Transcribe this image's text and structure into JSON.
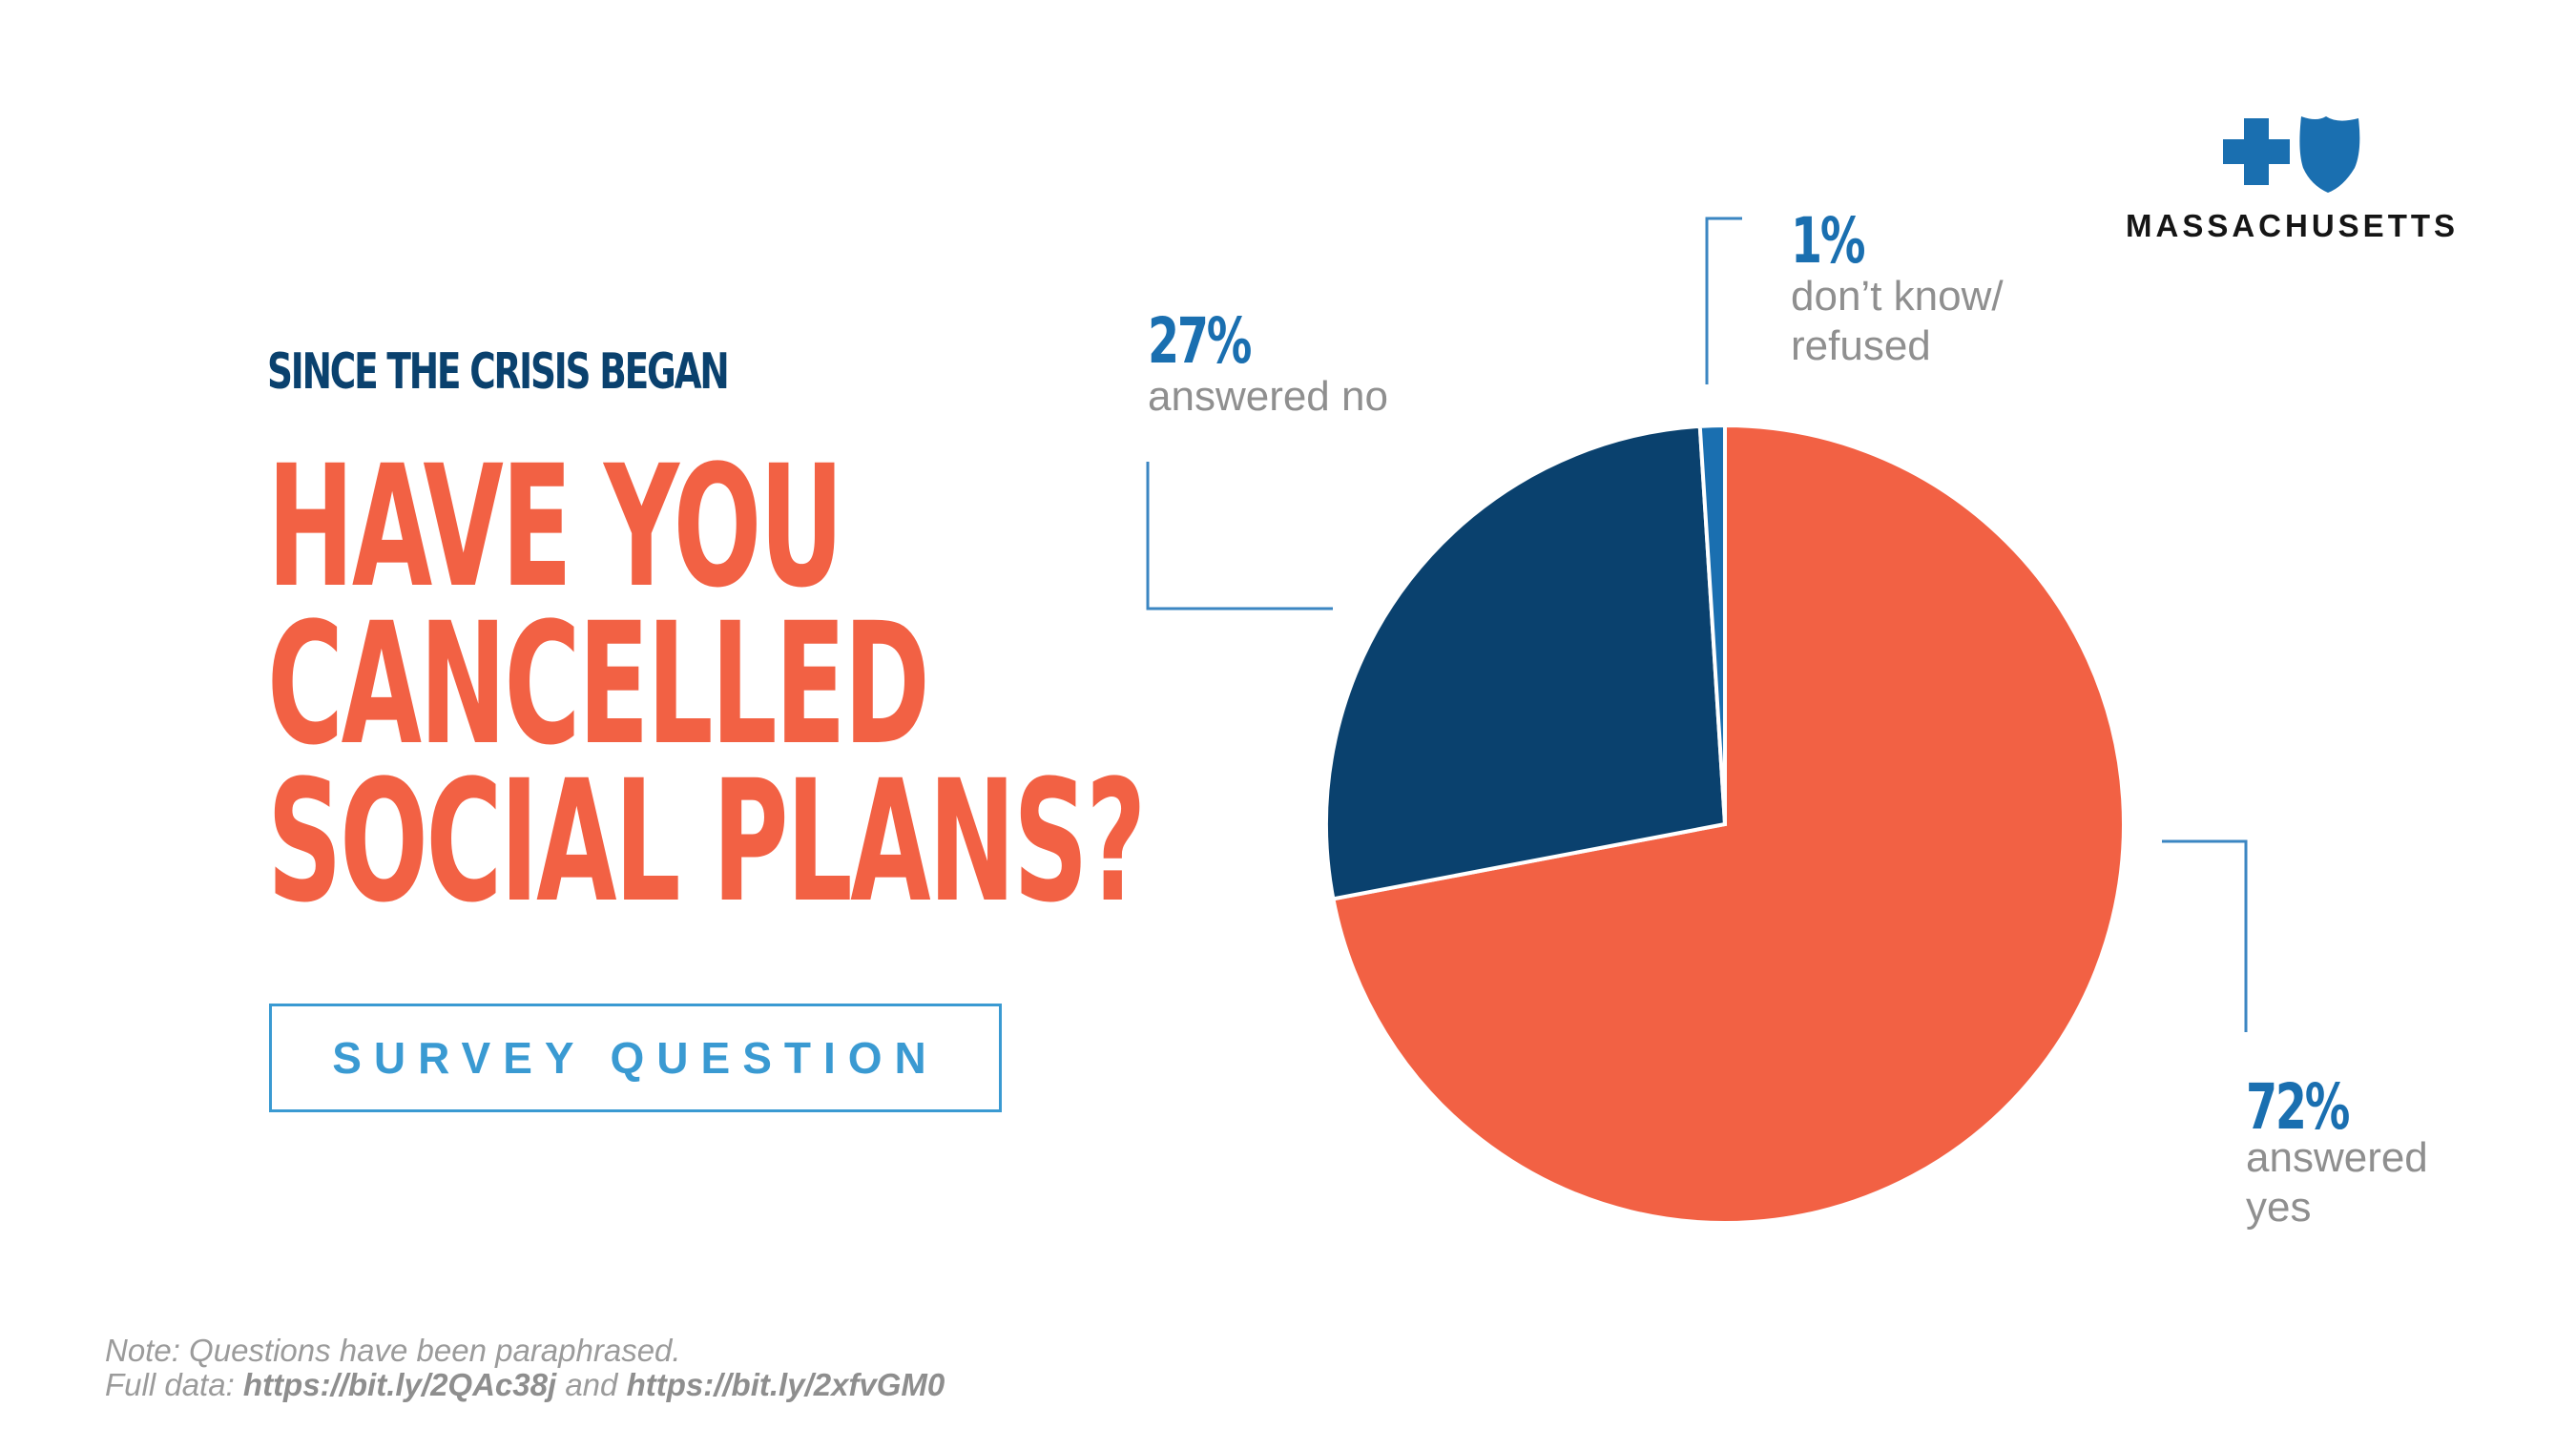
{
  "header": {
    "subtitle": "SINCE THE CRISIS BEGAN",
    "title_lines": [
      "HAVE YOU",
      "CANCELLED",
      "SOCIAL PLANS?"
    ],
    "badge": "SURVEY QUESTION"
  },
  "logo": {
    "text": "MASSACHUSETTS",
    "icons": [
      "cross-icon",
      "shield-icon"
    ]
  },
  "footer": {
    "note": "Note: Questions have been paraphrased.",
    "full_data_prefix": "Full data: ",
    "link1": "https://bit.ly/2QAc38j",
    "joiner": " and ",
    "link2": "https://bit.ly/2xfvGM0"
  },
  "colors": {
    "yes": "#f26144",
    "no": "#0a416e",
    "dont_know": "#1a6fb0",
    "accent": "#3a9ad2",
    "label_pct": "#1a6fb0"
  },
  "chart_data": {
    "type": "pie",
    "title": "Have you cancelled social plans?",
    "slices": [
      {
        "name": "yes",
        "value": 72,
        "pct_label": "72%",
        "label_lines": [
          "answered",
          "yes"
        ]
      },
      {
        "name": "no",
        "value": 27,
        "pct_label": "27%",
        "label_lines": [
          "answered no"
        ]
      },
      {
        "name": "dont_know_refused",
        "value": 1,
        "pct_label": "1%",
        "label_lines": [
          "don’t know/",
          "refused"
        ]
      }
    ]
  }
}
